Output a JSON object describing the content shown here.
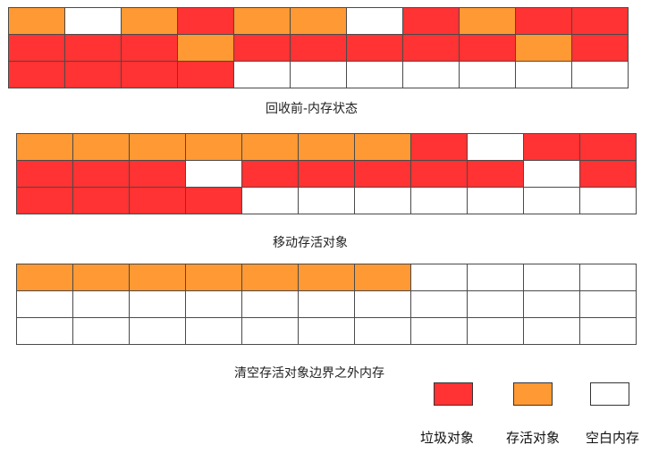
{
  "colors": {
    "garbage": "#ff3333",
    "live": "#ff9933",
    "empty": "#ffffff"
  },
  "captions": {
    "before": "回收前-内存状态",
    "moved": "移动存活对象",
    "cleared": "清空存活对象边界之外内存"
  },
  "legend": {
    "garbage": "垃圾对象",
    "live": "存活对象",
    "empty": "空白内存"
  },
  "grids": {
    "before": [
      [
        "L",
        "E",
        "L",
        "G",
        "L",
        "L",
        "E",
        "G",
        "L",
        "G",
        "G"
      ],
      [
        "G",
        "G",
        "G",
        "L",
        "G",
        "G",
        "G",
        "G",
        "G",
        "L",
        "G"
      ],
      [
        "G",
        "G",
        "G",
        "G",
        "E",
        "E",
        "E",
        "E",
        "E",
        "E",
        "E"
      ]
    ],
    "moved": [
      [
        "L",
        "L",
        "L",
        "L",
        "L",
        "L",
        "L",
        "G",
        "E",
        "G",
        "G"
      ],
      [
        "G",
        "G",
        "G",
        "E",
        "G",
        "G",
        "G",
        "G",
        "G",
        "E",
        "G"
      ],
      [
        "G",
        "G",
        "G",
        "G",
        "E",
        "E",
        "E",
        "E",
        "E",
        "E",
        "E"
      ]
    ],
    "cleared": [
      [
        "L",
        "L",
        "L",
        "L",
        "L",
        "L",
        "L",
        "E",
        "E",
        "E",
        "E"
      ],
      [
        "E",
        "E",
        "E",
        "E",
        "E",
        "E",
        "E",
        "E",
        "E",
        "E",
        "E"
      ],
      [
        "E",
        "E",
        "E",
        "E",
        "E",
        "E",
        "E",
        "E",
        "E",
        "E",
        "E"
      ]
    ]
  }
}
